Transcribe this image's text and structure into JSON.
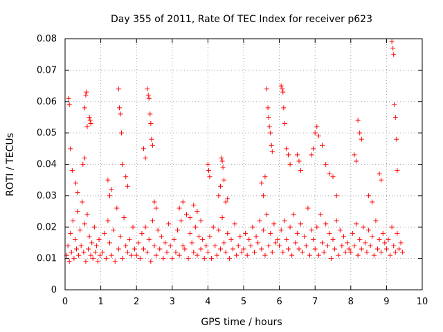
{
  "chart_data": {
    "type": "scatter",
    "title": "Day 355 of 2011, Rate Of TEC Index for receiver p623",
    "xlabel": "GPS time / hours",
    "ylabel": "ROTI / TECUs",
    "xlim": [
      0,
      10
    ],
    "ylim": [
      0,
      0.08
    ],
    "x_ticks": [
      0,
      1,
      2,
      3,
      4,
      5,
      6,
      7,
      8,
      9,
      10
    ],
    "y_ticks": [
      0,
      0.01,
      0.02,
      0.03,
      0.04,
      0.05,
      0.06,
      0.07,
      0.08
    ],
    "x_tick_labels": [
      "0",
      "1",
      "2",
      "3",
      "4",
      "5",
      "6",
      "7",
      "8",
      "9",
      "10"
    ],
    "y_tick_labels": [
      "0",
      "0.01",
      "0.02",
      "0.03",
      "0.04",
      "0.05",
      "0.06",
      "0.07",
      "0.08"
    ],
    "grid": true,
    "marker": "plus",
    "series": [
      {
        "name": "ROTI",
        "color": "#ff0000",
        "x": [
          0.05,
          0.08,
          0.12,
          0.15,
          0.18,
          0.22,
          0.25,
          0.28,
          0.32,
          0.35,
          0.38,
          0.42,
          0.45,
          0.48,
          0.52,
          0.55,
          0.58,
          0.62,
          0.65,
          0.68,
          0.72,
          0.75,
          0.78,
          0.82,
          0.85,
          0.88,
          0.92,
          0.95,
          0.98,
          0.1,
          0.12,
          0.15,
          0.2,
          0.55,
          0.58,
          0.6,
          0.62,
          0.68,
          0.7,
          0.72,
          0.3,
          0.35,
          0.5,
          0.55,
          1.05,
          1.1,
          1.15,
          1.2,
          1.25,
          1.3,
          1.35,
          1.4,
          1.45,
          1.5,
          1.55,
          1.6,
          1.65,
          1.7,
          1.75,
          1.8,
          1.85,
          1.9,
          1.95,
          1.5,
          1.52,
          1.55,
          1.58,
          1.6,
          1.2,
          1.25,
          1.3,
          1.7,
          1.75,
          2.0,
          2.05,
          2.1,
          2.15,
          2.2,
          2.25,
          2.3,
          2.35,
          2.4,
          2.45,
          2.5,
          2.55,
          2.6,
          2.65,
          2.7,
          2.75,
          2.8,
          2.85,
          2.9,
          2.95,
          2.3,
          2.33,
          2.35,
          2.38,
          2.4,
          2.42,
          2.45,
          2.2,
          2.25,
          2.5,
          2.55,
          3.0,
          3.05,
          3.1,
          3.15,
          3.2,
          3.25,
          3.3,
          3.35,
          3.4,
          3.45,
          3.5,
          3.55,
          3.6,
          3.65,
          3.7,
          3.75,
          3.8,
          3.85,
          3.9,
          3.95,
          3.2,
          3.3,
          3.5,
          3.6,
          3.7,
          3.8,
          4.0,
          4.05,
          4.1,
          4.15,
          4.2,
          4.25,
          4.3,
          4.35,
          4.4,
          4.45,
          4.5,
          4.55,
          4.6,
          4.65,
          4.7,
          4.75,
          4.8,
          4.85,
          4.9,
          4.95,
          4.0,
          4.02,
          4.05,
          4.38,
          4.4,
          4.42,
          4.45,
          4.3,
          4.35,
          4.5,
          4.55,
          5.0,
          5.05,
          5.1,
          5.15,
          5.2,
          5.25,
          5.3,
          5.35,
          5.4,
          5.45,
          5.5,
          5.55,
          5.6,
          5.65,
          5.7,
          5.75,
          5.8,
          5.85,
          5.9,
          5.95,
          5.65,
          5.68,
          5.7,
          5.72,
          5.75,
          5.78,
          5.8,
          5.5,
          5.55,
          5.6,
          6.0,
          6.05,
          6.1,
          6.15,
          6.2,
          6.25,
          6.3,
          6.35,
          6.4,
          6.45,
          6.5,
          6.55,
          6.6,
          6.65,
          6.7,
          6.75,
          6.8,
          6.85,
          6.9,
          6.95,
          6.05,
          6.08,
          6.1,
          6.12,
          6.15,
          6.2,
          6.25,
          6.3,
          6.5,
          6.55,
          6.6,
          7.0,
          7.05,
          7.1,
          7.15,
          7.2,
          7.25,
          7.3,
          7.35,
          7.4,
          7.45,
          7.5,
          7.55,
          7.6,
          7.65,
          7.7,
          7.75,
          7.8,
          7.85,
          7.9,
          7.95,
          6.9,
          6.95,
          7.0,
          7.05,
          7.1,
          7.2,
          7.3,
          7.4,
          7.5,
          7.6,
          8.0,
          8.05,
          8.1,
          8.15,
          8.2,
          8.25,
          8.3,
          8.35,
          8.4,
          8.45,
          8.5,
          8.55,
          8.6,
          8.65,
          8.7,
          8.75,
          8.8,
          8.85,
          8.9,
          8.95,
          8.1,
          8.15,
          8.2,
          8.25,
          8.3,
          8.5,
          8.6,
          8.8,
          8.85,
          9.0,
          9.05,
          9.1,
          9.15,
          9.2,
          9.25,
          9.3,
          9.35,
          9.4,
          9.45,
          9.15,
          9.18,
          9.2,
          9.22,
          9.25,
          9.28,
          9.3
        ],
        "y": [
          0.011,
          0.014,
          0.009,
          0.018,
          0.012,
          0.022,
          0.01,
          0.016,
          0.013,
          0.025,
          0.011,
          0.019,
          0.014,
          0.028,
          0.012,
          0.021,
          0.009,
          0.024,
          0.013,
          0.017,
          0.011,
          0.015,
          0.01,
          0.02,
          0.012,
          0.014,
          0.009,
          0.016,
          0.011,
          0.061,
          0.059,
          0.045,
          0.038,
          0.058,
          0.062,
          0.063,
          0.052,
          0.055,
          0.054,
          0.053,
          0.034,
          0.031,
          0.04,
          0.042,
          0.012,
          0.018,
          0.01,
          0.022,
          0.015,
          0.011,
          0.019,
          0.009,
          0.026,
          0.013,
          0.017,
          0.01,
          0.023,
          0.014,
          0.012,
          0.016,
          0.011,
          0.02,
          0.013,
          0.064,
          0.058,
          0.056,
          0.05,
          0.04,
          0.035,
          0.03,
          0.032,
          0.036,
          0.033,
          0.011,
          0.015,
          0.01,
          0.018,
          0.013,
          0.02,
          0.012,
          0.016,
          0.009,
          0.022,
          0.014,
          0.011,
          0.019,
          0.013,
          0.017,
          0.01,
          0.015,
          0.012,
          0.021,
          0.014,
          0.064,
          0.062,
          0.061,
          0.056,
          0.053,
          0.048,
          0.046,
          0.045,
          0.042,
          0.028,
          0.026,
          0.01,
          0.016,
          0.012,
          0.019,
          0.011,
          0.022,
          0.014,
          0.013,
          0.024,
          0.01,
          0.018,
          0.015,
          0.012,
          0.02,
          0.011,
          0.017,
          0.013,
          0.016,
          0.01,
          0.014,
          0.026,
          0.028,
          0.023,
          0.027,
          0.025,
          0.022,
          0.012,
          0.017,
          0.01,
          0.02,
          0.014,
          0.011,
          0.019,
          0.013,
          0.023,
          0.015,
          0.012,
          0.018,
          0.01,
          0.016,
          0.013,
          0.021,
          0.011,
          0.014,
          0.017,
          0.012,
          0.04,
          0.038,
          0.036,
          0.042,
          0.041,
          0.039,
          0.035,
          0.03,
          0.033,
          0.028,
          0.029,
          0.013,
          0.018,
          0.011,
          0.016,
          0.014,
          0.02,
          0.012,
          0.017,
          0.015,
          0.022,
          0.013,
          0.019,
          0.011,
          0.024,
          0.014,
          0.018,
          0.012,
          0.021,
          0.015,
          0.016,
          0.064,
          0.058,
          0.055,
          0.052,
          0.05,
          0.046,
          0.044,
          0.034,
          0.03,
          0.036,
          0.014,
          0.019,
          0.012,
          0.022,
          0.016,
          0.013,
          0.02,
          0.011,
          0.024,
          0.015,
          0.018,
          0.013,
          0.021,
          0.012,
          0.017,
          0.014,
          0.026,
          0.011,
          0.019,
          0.016,
          0.065,
          0.064,
          0.063,
          0.058,
          0.053,
          0.045,
          0.043,
          0.04,
          0.043,
          0.041,
          0.038,
          0.013,
          0.02,
          0.011,
          0.024,
          0.015,
          0.012,
          0.021,
          0.014,
          0.018,
          0.01,
          0.016,
          0.013,
          0.022,
          0.011,
          0.019,
          0.014,
          0.017,
          0.012,
          0.015,
          0.013,
          0.043,
          0.045,
          0.05,
          0.052,
          0.049,
          0.046,
          0.04,
          0.037,
          0.036,
          0.03,
          0.012,
          0.018,
          0.014,
          0.021,
          0.011,
          0.016,
          0.013,
          0.02,
          0.015,
          0.012,
          0.019,
          0.014,
          0.017,
          0.011,
          0.022,
          0.013,
          0.016,
          0.012,
          0.018,
          0.015,
          0.043,
          0.041,
          0.054,
          0.05,
          0.048,
          0.03,
          0.028,
          0.037,
          0.035,
          0.013,
          0.016,
          0.011,
          0.02,
          0.014,
          0.012,
          0.018,
          0.013,
          0.015,
          0.012,
          0.079,
          0.077,
          0.075,
          0.059,
          0.055,
          0.048,
          0.038
        ]
      }
    ]
  }
}
